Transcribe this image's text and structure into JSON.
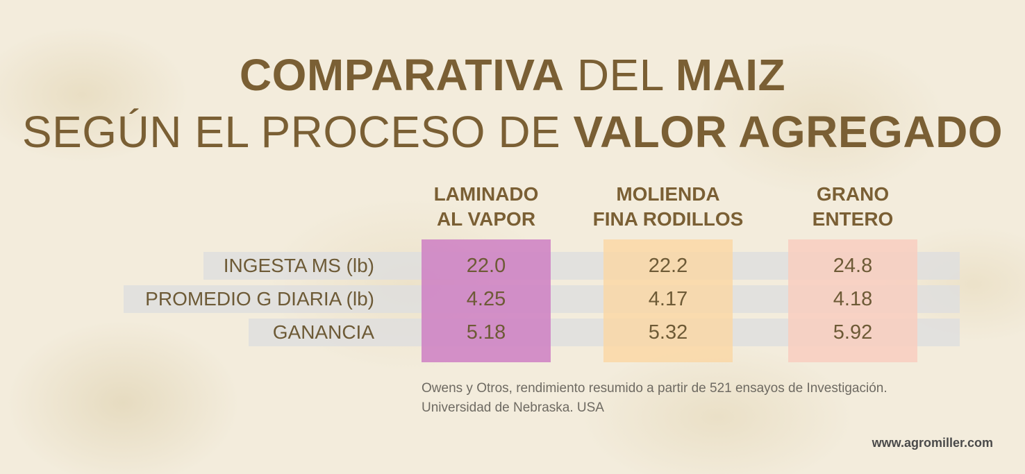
{
  "title": {
    "line1_bold_a": "COMPARATIVA",
    "line1_light": "DEL",
    "line1_bold_b": "MAIZ",
    "line2_light": "SEGÚN EL PROCESO DE",
    "line2_bold": "VALOR AGREGADO"
  },
  "columns": [
    {
      "line1": "LAMINADO",
      "line2": "AL VAPOR"
    },
    {
      "line1": "MOLIENDA",
      "line2": "FINA RODILLOS"
    },
    {
      "line1": "GRANO",
      "line2": "ENTERO"
    }
  ],
  "rows": [
    {
      "label": "INGESTA MS (lb)",
      "values": [
        "22.0",
        "22.2",
        "24.8"
      ]
    },
    {
      "label": "PROMEDIO G DIARIA (lb)",
      "values": [
        "4.25",
        "4.17",
        "4.18"
      ]
    },
    {
      "label": "GANANCIA",
      "values": [
        "5.18",
        "5.32",
        "5.92"
      ]
    }
  ],
  "source": {
    "line1": "Owens y Otros, rendimiento resumido a partir de 521 ensayos de Investigación.",
    "line2": "Universidad de Nebraska. USA"
  },
  "website": "www.agromiller.com",
  "colors": {
    "title": "#7a5f34",
    "column1": "#ce82c4",
    "column2": "#fbd6a2",
    "column3": "#f8cec0",
    "stripe": "#dedede",
    "background": "#f3ecdc"
  }
}
